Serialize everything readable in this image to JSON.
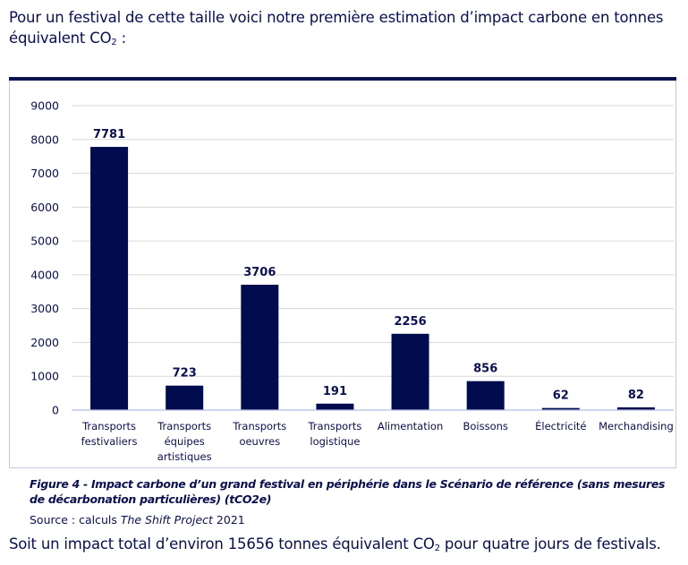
{
  "intro": {
    "text_before": "Pour un festival de cette taille voici notre première estimation d’impact carbone en tonnes équivalent CO",
    "sub": "2",
    "text_after": " :"
  },
  "chart_data": {
    "type": "bar",
    "title": "",
    "xlabel": "",
    "ylabel": "",
    "ylim": [
      0,
      9000
    ],
    "yticks": [
      0,
      1000,
      2000,
      3000,
      4000,
      5000,
      6000,
      7000,
      8000,
      9000
    ],
    "grid": true,
    "legend": "none",
    "categories": [
      [
        "Transports",
        "festivaliers"
      ],
      [
        "Transports",
        "équipes",
        "artistiques"
      ],
      [
        "Transports",
        "oeuvres"
      ],
      [
        "Transports",
        "logistique"
      ],
      [
        "Alimentation"
      ],
      [
        "Boissons"
      ],
      [
        "Électricité"
      ],
      [
        "Merchandising"
      ]
    ],
    "values": [
      7781,
      723,
      3706,
      191,
      2256,
      856,
      62,
      82
    ],
    "bar_color": "#000c4d"
  },
  "caption": {
    "figure": "Figure 4 - Impact carbone d’un grand festival en périphérie dans le Scénario de référence (sans mesures de décarbonation particulières) (tCO2e)",
    "source_prefix": "Source : calculs ",
    "source_italic": "The Shift Project",
    "source_suffix": " 2021"
  },
  "outro": {
    "text_before": "Soit un impact total d’environ 15656 tonnes équivalent CO",
    "sub": "2",
    "text_after": " pour quatre jours de festivals."
  }
}
